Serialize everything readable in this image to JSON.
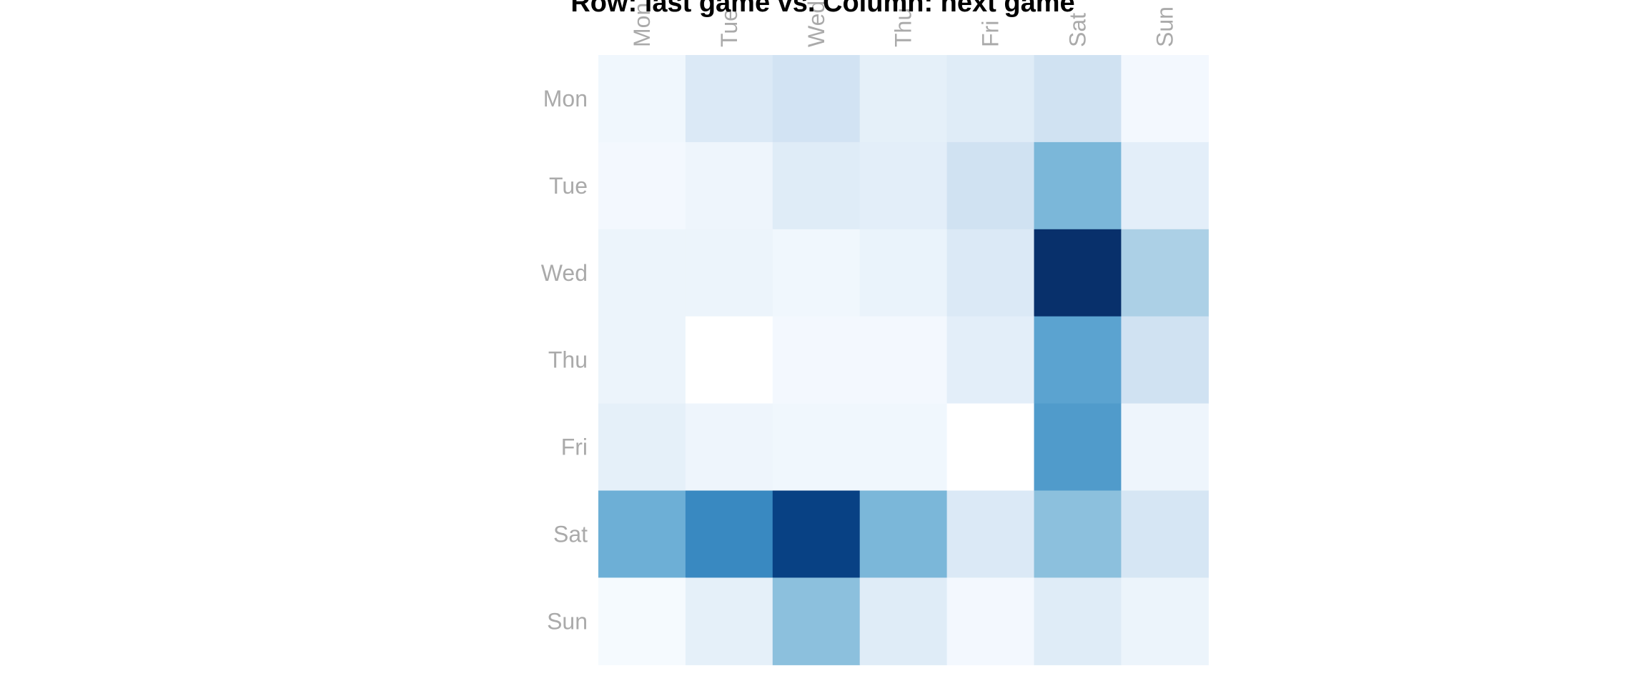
{
  "chart_data": {
    "type": "heatmap",
    "title": "Row: last game vs. Column: next game",
    "x_categories": [
      "Mon",
      "Tue",
      "Wed",
      "Thu",
      "Fri",
      "Sat",
      "Sun"
    ],
    "y_categories": [
      "Mon",
      "Tue",
      "Wed",
      "Thu",
      "Fri",
      "Sat",
      "Sun"
    ],
    "values": [
      [
        0.03,
        0.13,
        0.17,
        0.08,
        0.11,
        0.18,
        0.02
      ],
      [
        0.02,
        0.04,
        0.11,
        0.09,
        0.18,
        0.42,
        0.09
      ],
      [
        0.05,
        0.05,
        0.03,
        0.06,
        0.13,
        1.0,
        0.3
      ],
      [
        0.05,
        0.0,
        0.02,
        0.02,
        0.09,
        0.5,
        0.18
      ],
      [
        0.08,
        0.04,
        0.03,
        0.03,
        0.0,
        0.53,
        0.04
      ],
      [
        0.45,
        0.6,
        0.85,
        0.42,
        0.13,
        0.38,
        0.15
      ],
      [
        0.01,
        0.08,
        0.38,
        0.11,
        0.02,
        0.11,
        0.05
      ]
    ],
    "colormap": "Blues",
    "grid": false,
    "legend": "none",
    "tick_label_color": "#aaaaaa",
    "title_color": "#000000"
  }
}
